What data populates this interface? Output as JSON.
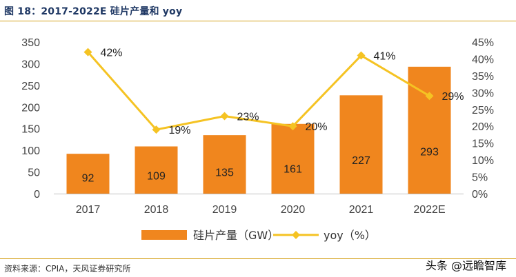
{
  "title": "图 18：2017-2022E 硅片产量和 yoy",
  "source": "资料来源：CPIA，天风证券研究所",
  "watermark": "头条 @远瞻智库",
  "colors": {
    "bar": "#F0861E",
    "line": "#F5C323",
    "title": "#1f3864",
    "rule": "#d4a017"
  },
  "chart_data": {
    "type": "bar",
    "categories": [
      "2017",
      "2018",
      "2019",
      "2020",
      "2021",
      "2022E"
    ],
    "series": [
      {
        "name": "硅片产量（GW）",
        "type": "bar",
        "axis": "left",
        "values": [
          92,
          109,
          135,
          161,
          227,
          293
        ],
        "labels": [
          "92",
          "109",
          "135",
          "161",
          "227",
          "293"
        ]
      },
      {
        "name": "yoy（%）",
        "type": "line",
        "axis": "right",
        "values": [
          42,
          19,
          23,
          20,
          41,
          29
        ],
        "labels": [
          "42%",
          "19%",
          "23%",
          "20%",
          "41%",
          "29%"
        ]
      }
    ],
    "ylim_left": [
      0,
      350
    ],
    "yticks_left": [
      "0",
      "50",
      "100",
      "150",
      "200",
      "250",
      "300",
      "350"
    ],
    "ylim_right": [
      0,
      45
    ],
    "yticks_right": [
      "0%",
      "5%",
      "10%",
      "15%",
      "20%",
      "25%",
      "30%",
      "35%",
      "40%",
      "45%"
    ],
    "legend_position": "bottom",
    "grid": false
  }
}
